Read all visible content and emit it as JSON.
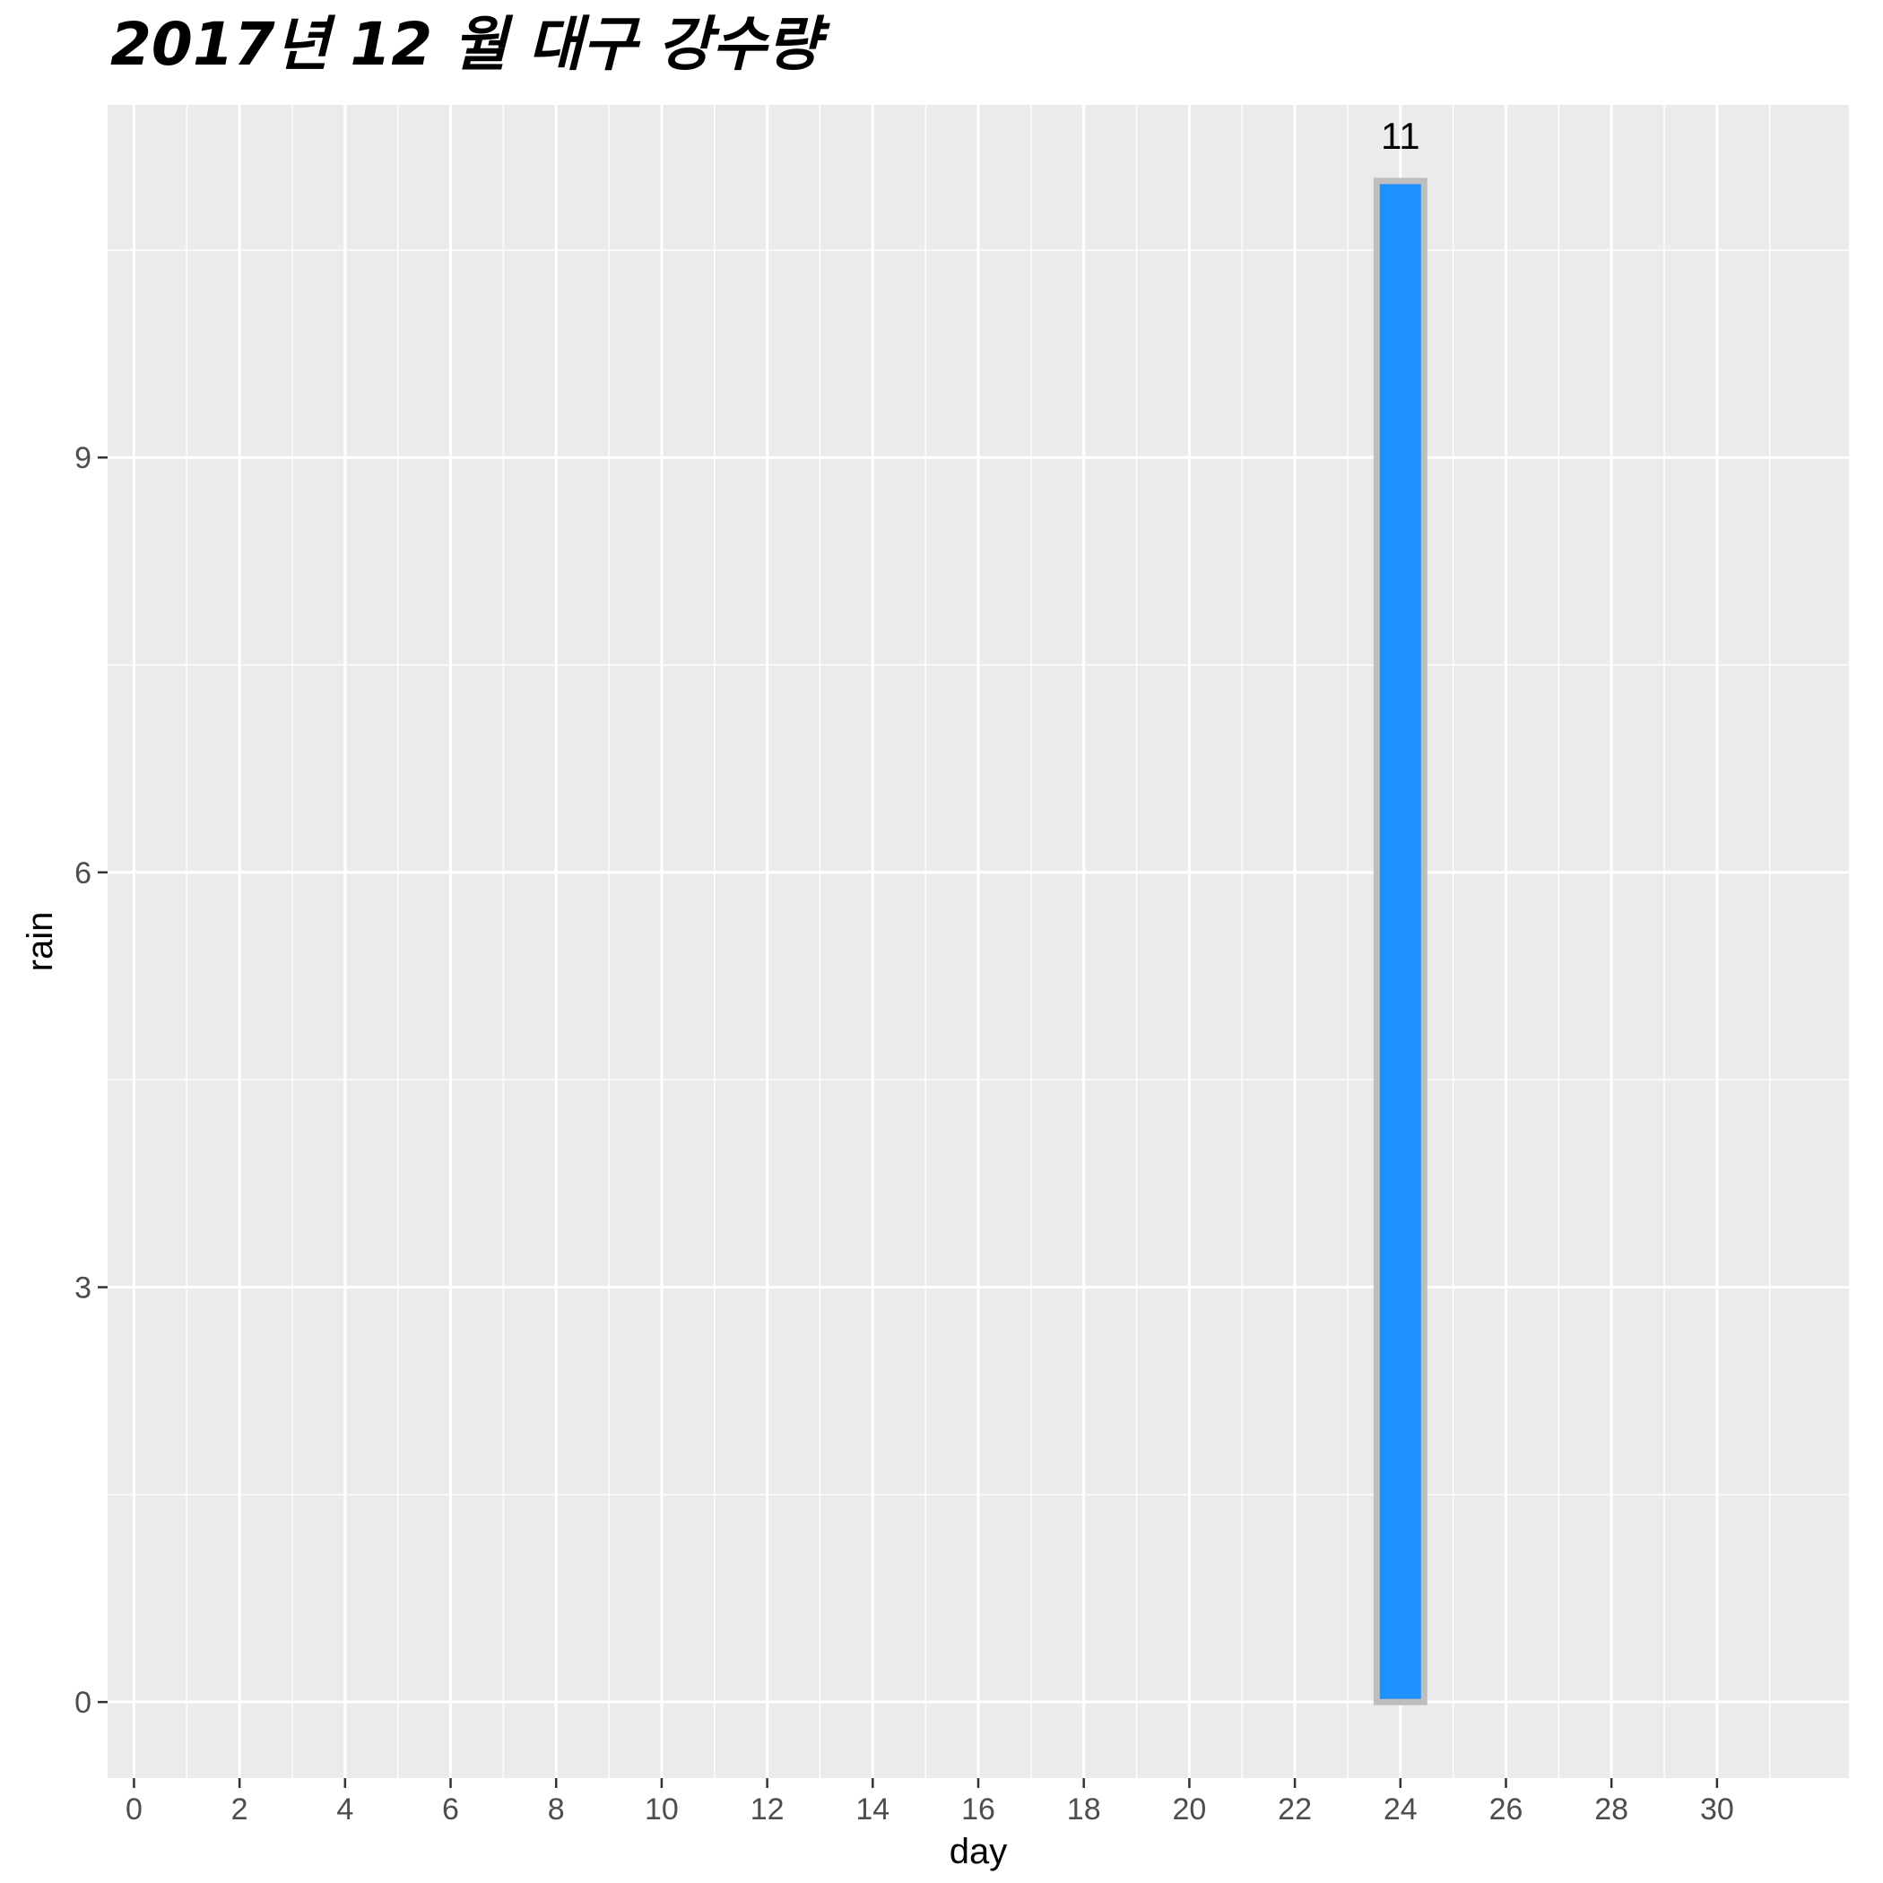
{
  "chart_data": {
    "type": "bar",
    "title": "2017년 12 월 대구 강수량",
    "xlabel": "day",
    "ylabel": "rain",
    "x_ticks": [
      0,
      2,
      4,
      6,
      8,
      10,
      12,
      14,
      16,
      18,
      20,
      22,
      24,
      26,
      28,
      30
    ],
    "y_ticks": [
      0,
      3,
      6,
      9
    ],
    "xlim": [
      -0.5,
      32.5
    ],
    "ylim": [
      -0.55,
      11.55
    ],
    "grid": true,
    "legend": "none",
    "bars": [
      {
        "day": 24,
        "rain": 11,
        "label": "11"
      }
    ],
    "colors": {
      "bar_fill": "#1E90FF",
      "bar_outline": "#BEBEBE",
      "panel_background": "#EBEBEB",
      "grid": "#FFFFFF"
    }
  }
}
